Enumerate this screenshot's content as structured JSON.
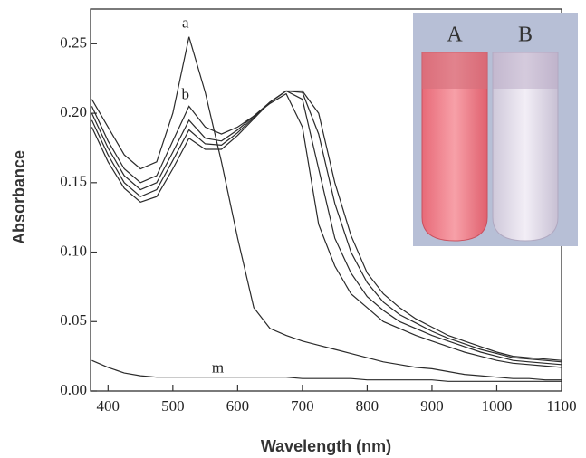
{
  "chart_data": {
    "type": "line",
    "x_label": "Wavelength (nm)",
    "y_label": "Absorbance",
    "x": [
      375,
      400,
      425,
      450,
      475,
      500,
      525,
      550,
      575,
      600,
      625,
      650,
      675,
      700,
      725,
      750,
      775,
      800,
      825,
      850,
      875,
      900,
      925,
      950,
      975,
      1000,
      1025,
      1050,
      1075,
      1100
    ],
    "series": [
      {
        "name": "a",
        "color": "#2a2a2a",
        "values": [
          0.21,
          0.19,
          0.17,
          0.16,
          0.165,
          0.2,
          0.255,
          0.215,
          0.165,
          0.11,
          0.06,
          0.045,
          0.04,
          0.036,
          0.033,
          0.03,
          0.027,
          0.024,
          0.021,
          0.019,
          0.017,
          0.016,
          0.014,
          0.012,
          0.011,
          0.01,
          0.009,
          0.009,
          0.008,
          0.008
        ]
      },
      {
        "name": "b",
        "color": "#2a2a2a",
        "values": [
          0.205,
          0.18,
          0.16,
          0.15,
          0.155,
          0.18,
          0.205,
          0.19,
          0.185,
          0.19,
          0.198,
          0.207,
          0.214,
          0.19,
          0.12,
          0.09,
          0.07,
          0.06,
          0.05,
          0.045,
          0.04,
          0.036,
          0.032,
          0.028,
          0.025,
          0.022,
          0.02,
          0.019,
          0.018,
          0.017
        ]
      },
      {
        "color": "#2a2a2a",
        "values": [
          0.2,
          0.175,
          0.155,
          0.145,
          0.15,
          0.172,
          0.195,
          0.182,
          0.18,
          0.188,
          0.198,
          0.208,
          0.216,
          0.21,
          0.16,
          0.11,
          0.085,
          0.068,
          0.058,
          0.05,
          0.045,
          0.04,
          0.036,
          0.032,
          0.028,
          0.025,
          0.022,
          0.021,
          0.02,
          0.019
        ]
      },
      {
        "color": "#2a2a2a",
        "values": [
          0.195,
          0.17,
          0.15,
          0.14,
          0.145,
          0.166,
          0.188,
          0.178,
          0.177,
          0.186,
          0.197,
          0.208,
          0.216,
          0.215,
          0.185,
          0.135,
          0.1,
          0.078,
          0.064,
          0.055,
          0.049,
          0.043,
          0.038,
          0.034,
          0.03,
          0.027,
          0.024,
          0.023,
          0.022,
          0.021
        ]
      },
      {
        "color": "#2a2a2a",
        "values": [
          0.19,
          0.165,
          0.146,
          0.136,
          0.14,
          0.16,
          0.182,
          0.174,
          0.174,
          0.184,
          0.196,
          0.208,
          0.216,
          0.216,
          0.2,
          0.15,
          0.112,
          0.085,
          0.07,
          0.06,
          0.052,
          0.046,
          0.04,
          0.036,
          0.032,
          0.028,
          0.025,
          0.024,
          0.023,
          0.022
        ]
      },
      {
        "name": "m",
        "color": "#2a2a2a",
        "values": [
          0.022,
          0.017,
          0.013,
          0.011,
          0.01,
          0.01,
          0.01,
          0.01,
          0.01,
          0.01,
          0.01,
          0.01,
          0.01,
          0.009,
          0.009,
          0.009,
          0.009,
          0.008,
          0.008,
          0.008,
          0.008,
          0.008,
          0.007,
          0.007,
          0.007,
          0.007,
          0.007,
          0.007,
          0.007,
          0.007
        ]
      }
    ],
    "xlim": [
      373,
      1100
    ],
    "ylim": [
      0,
      0.275
    ],
    "xticks": [
      400,
      500,
      600,
      700,
      800,
      900,
      1000,
      1100
    ],
    "yticks": [
      {
        "value": 0,
        "label": "0.00"
      },
      {
        "value": 0.05,
        "label": "0.05"
      },
      {
        "value": 0.1,
        "label": "0.10"
      },
      {
        "value": 0.15,
        "label": "0.15"
      },
      {
        "value": 0.2,
        "label": "0.20"
      },
      {
        "value": 0.25,
        "label": "0.25"
      }
    ],
    "inset_labels": [
      "A",
      "B"
    ]
  }
}
